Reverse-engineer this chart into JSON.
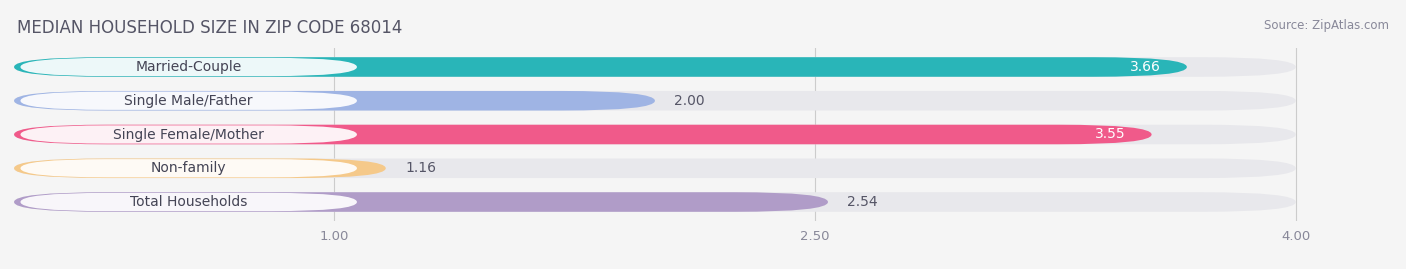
{
  "title": "MEDIAN HOUSEHOLD SIZE IN ZIP CODE 68014",
  "source": "Source: ZipAtlas.com",
  "categories": [
    "Married-Couple",
    "Single Male/Father",
    "Single Female/Mother",
    "Non-family",
    "Total Households"
  ],
  "values": [
    3.66,
    2.0,
    3.55,
    1.16,
    2.54
  ],
  "bar_colors": [
    "#29b5b8",
    "#9fb4e4",
    "#f05a8a",
    "#f5c98a",
    "#b09cc8"
  ],
  "xlim": [
    0,
    4.3
  ],
  "xmin": 0,
  "xmax": 4.0,
  "xticks": [
    1.0,
    2.5,
    4.0
  ],
  "xtick_labels": [
    "1.00",
    "2.50",
    "4.00"
  ],
  "bar_height": 0.58,
  "background_color": "#f5f5f5",
  "bar_bg_color": "#e8e8ec",
  "title_fontsize": 12,
  "label_fontsize": 10,
  "value_fontsize": 10,
  "title_color": "#555566",
  "label_bg_color": "#ffffff"
}
